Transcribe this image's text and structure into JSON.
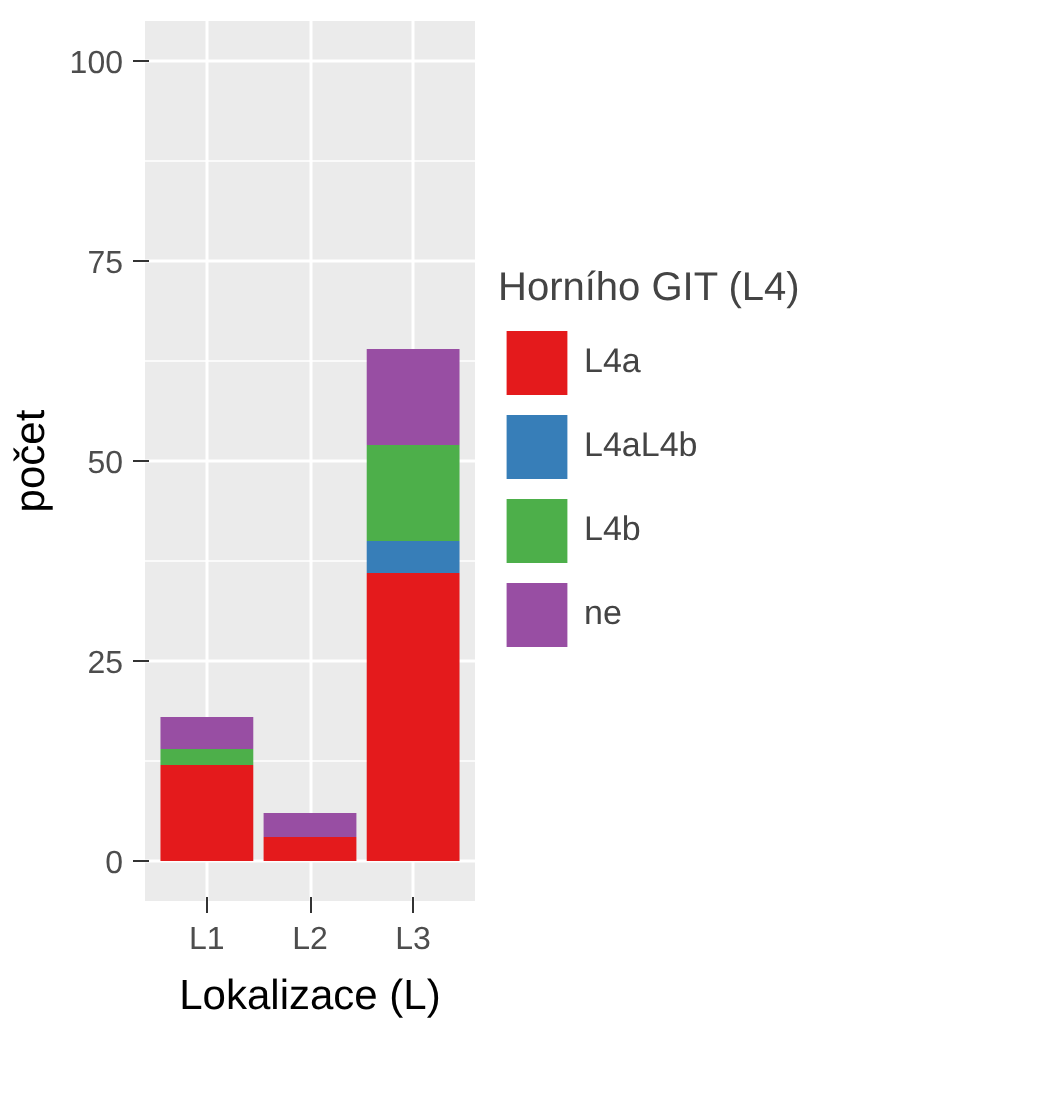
{
  "chart_data": {
    "type": "bar",
    "stacked": true,
    "xlabel": "Lokalizace (L)",
    "ylabel": "počet",
    "legend_title": "Horního GIT (L4)",
    "categories": [
      "L1",
      "L2",
      "L3"
    ],
    "series": [
      {
        "name": "L4a",
        "color": "#e41a1c",
        "values": [
          12,
          3,
          36
        ]
      },
      {
        "name": "L4aL4b",
        "color": "#377eb8",
        "values": [
          0,
          0,
          4
        ]
      },
      {
        "name": "L4b",
        "color": "#4daf4a",
        "values": [
          2,
          0,
          12
        ]
      },
      {
        "name": "ne",
        "color": "#984ea3",
        "values": [
          4,
          3,
          12
        ]
      }
    ],
    "ylim": [
      -5,
      105
    ],
    "yticks": [
      0,
      25,
      50,
      75,
      100
    ],
    "grid": true,
    "legend": "right"
  }
}
